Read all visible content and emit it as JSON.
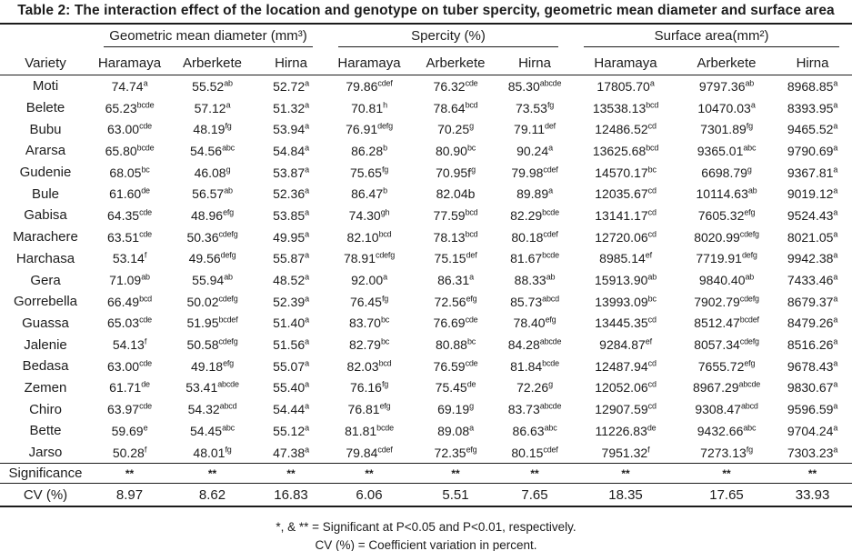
{
  "title": "Table 2: The interaction effect of the location and genotype on tuber spercity, geometric mean diameter and surface area",
  "table": {
    "variety_header": "Variety",
    "groups": [
      {
        "label": "Geometric mean diameter (mm³)"
      },
      {
        "label": "Spercity (%)"
      },
      {
        "label": "Surface area(mm²)"
      }
    ],
    "locations": [
      "Haramaya",
      "Arberkete",
      "Hirna",
      "Haramaya",
      "Arberkete",
      "Hirna",
      "Haramaya",
      "Arberkete",
      "Hirna"
    ],
    "rows": [
      {
        "variety": "Moti",
        "cells": [
          {
            "v": "74.74",
            "s": "a"
          },
          {
            "v": "55.52",
            "s": "ab"
          },
          {
            "v": "52.72",
            "s": "a"
          },
          {
            "v": "79.86",
            "s": "cdef"
          },
          {
            "v": "76.32",
            "s": "cde"
          },
          {
            "v": "85.30",
            "s": "abcde"
          },
          {
            "v": "17805.70",
            "s": "a"
          },
          {
            "v": "9797.36",
            "s": "ab"
          },
          {
            "v": "8968.85",
            "s": "a"
          }
        ]
      },
      {
        "variety": "Belete",
        "cells": [
          {
            "v": "65.23",
            "s": "bcde"
          },
          {
            "v": "57.12",
            "s": "a"
          },
          {
            "v": "51.32",
            "s": "a"
          },
          {
            "v": "70.81",
            "s": "h"
          },
          {
            "v": "78.64",
            "s": "bcd"
          },
          {
            "v": "73.53",
            "s": "fg"
          },
          {
            "v": "13538.13",
            "s": "bcd"
          },
          {
            "v": "10470.03",
            "s": "a"
          },
          {
            "v": "8393.95",
            "s": "a"
          }
        ]
      },
      {
        "variety": "Bubu",
        "cells": [
          {
            "v": "63.00",
            "s": "cde"
          },
          {
            "v": "48.19",
            "s": "fg"
          },
          {
            "v": "53.94",
            "s": "a"
          },
          {
            "v": "76.91",
            "s": "defg"
          },
          {
            "v": "70.25",
            "s": "g"
          },
          {
            "v": "79.11",
            "s": "def"
          },
          {
            "v": "12486.52",
            "s": "cd"
          },
          {
            "v": "7301.89",
            "s": "fg"
          },
          {
            "v": "9465.52",
            "s": "a"
          }
        ]
      },
      {
        "variety": "Ararsa",
        "cells": [
          {
            "v": "65.80",
            "s": "bcde"
          },
          {
            "v": "54.56",
            "s": "abc"
          },
          {
            "v": "54.84",
            "s": "a"
          },
          {
            "v": "86.28",
            "s": "b"
          },
          {
            "v": "80.90",
            "s": "bc"
          },
          {
            "v": "90.24",
            "s": "a"
          },
          {
            "v": "13625.68",
            "s": "bcd"
          },
          {
            "v": "9365.01",
            "s": "abc"
          },
          {
            "v": "9790.69",
            "s": "a"
          }
        ]
      },
      {
        "variety": "Gudenie",
        "cells": [
          {
            "v": "68.05",
            "s": "bc"
          },
          {
            "v": "46.08",
            "s": "g"
          },
          {
            "v": "53.87",
            "s": "a"
          },
          {
            "v": "75.65",
            "s": "fg"
          },
          {
            "v": "70.95f",
            "s": "g"
          },
          {
            "v": "79.98",
            "s": "cdef"
          },
          {
            "v": "14570.17",
            "s": "bc"
          },
          {
            "v": "6698.79",
            "s": "g"
          },
          {
            "v": "9367.81",
            "s": "a"
          }
        ]
      },
      {
        "variety": "Bule",
        "cells": [
          {
            "v": "61.60",
            "s": "de"
          },
          {
            "v": "56.57",
            "s": "ab"
          },
          {
            "v": "52.36",
            "s": "a"
          },
          {
            "v": "86.47",
            "s": "b"
          },
          {
            "v": "82.04b",
            "s": ""
          },
          {
            "v": "89.89",
            "s": "a"
          },
          {
            "v": "12035.67",
            "s": "cd"
          },
          {
            "v": "10114.63",
            "s": "ab"
          },
          {
            "v": "9019.12",
            "s": "a"
          }
        ]
      },
      {
        "variety": "Gabisa",
        "cells": [
          {
            "v": "64.35",
            "s": "cde"
          },
          {
            "v": "48.96",
            "s": "efg"
          },
          {
            "v": "53.85",
            "s": "a"
          },
          {
            "v": "74.30",
            "s": "gh"
          },
          {
            "v": "77.59",
            "s": "bcd"
          },
          {
            "v": "82.29",
            "s": "bcde"
          },
          {
            "v": "13141.17",
            "s": "cd"
          },
          {
            "v": "7605.32",
            "s": "efg"
          },
          {
            "v": "9524.43",
            "s": "a"
          }
        ]
      },
      {
        "variety": "Marachere",
        "cells": [
          {
            "v": "63.51",
            "s": "cde"
          },
          {
            "v": "50.36",
            "s": "cdefg"
          },
          {
            "v": "49.95",
            "s": "a"
          },
          {
            "v": "82.10",
            "s": "bcd"
          },
          {
            "v": "78.13",
            "s": "bcd"
          },
          {
            "v": "80.18",
            "s": "cdef"
          },
          {
            "v": "12720.06",
            "s": "cd"
          },
          {
            "v": "8020.99",
            "s": "cdefg"
          },
          {
            "v": "8021.05",
            "s": "a"
          }
        ]
      },
      {
        "variety": "Harchasa",
        "cells": [
          {
            "v": "53.14",
            "s": "f"
          },
          {
            "v": "49.56",
            "s": "defg"
          },
          {
            "v": "55.87",
            "s": "a"
          },
          {
            "v": "78.91",
            "s": "cdefg"
          },
          {
            "v": "75.15",
            "s": "def"
          },
          {
            "v": "81.67",
            "s": "bcde"
          },
          {
            "v": "8985.14",
            "s": "ef"
          },
          {
            "v": "7719.91",
            "s": "defg"
          },
          {
            "v": "9942.38",
            "s": "a"
          }
        ]
      },
      {
        "variety": "Gera",
        "cells": [
          {
            "v": "71.09",
            "s": "ab"
          },
          {
            "v": "55.94",
            "s": "ab"
          },
          {
            "v": "48.52",
            "s": "a"
          },
          {
            "v": "92.00",
            "s": "a"
          },
          {
            "v": "86.31",
            "s": "a"
          },
          {
            "v": "88.33",
            "s": "ab"
          },
          {
            "v": "15913.90",
            "s": "ab"
          },
          {
            "v": "9840.40",
            "s": "ab"
          },
          {
            "v": "7433.46",
            "s": "a"
          }
        ]
      },
      {
        "variety": "Gorrebella",
        "cells": [
          {
            "v": "66.49",
            "s": "bcd"
          },
          {
            "v": "50.02",
            "s": "cdefg"
          },
          {
            "v": "52.39",
            "s": "a"
          },
          {
            "v": "76.45",
            "s": "fg"
          },
          {
            "v": "72.56",
            "s": "efg"
          },
          {
            "v": "85.73",
            "s": "abcd"
          },
          {
            "v": "13993.09",
            "s": "bc"
          },
          {
            "v": "7902.79",
            "s": "cdefg"
          },
          {
            "v": "8679.37",
            "s": "a"
          }
        ]
      },
      {
        "variety": "Guassa",
        "cells": [
          {
            "v": "65.03",
            "s": "cde"
          },
          {
            "v": "51.95",
            "s": "bcdef"
          },
          {
            "v": "51.40",
            "s": "a"
          },
          {
            "v": "83.70",
            "s": "bc"
          },
          {
            "v": "76.69",
            "s": "cde"
          },
          {
            "v": "78.40",
            "s": "efg"
          },
          {
            "v": "13445.35",
            "s": "cd"
          },
          {
            "v": "8512.47",
            "s": "bcdef"
          },
          {
            "v": "8479.26",
            "s": "a"
          }
        ]
      },
      {
        "variety": "Jalenie",
        "cells": [
          {
            "v": "54.13",
            "s": "f"
          },
          {
            "v": "50.58",
            "s": "cdefg"
          },
          {
            "v": "51.56",
            "s": "a"
          },
          {
            "v": "82.79",
            "s": "bc"
          },
          {
            "v": "80.88",
            "s": "bc"
          },
          {
            "v": "84.28",
            "s": "abcde"
          },
          {
            "v": "9284.87",
            "s": "ef"
          },
          {
            "v": "8057.34",
            "s": "cdefg"
          },
          {
            "v": "8516.26",
            "s": "a"
          }
        ]
      },
      {
        "variety": "Bedasa",
        "cells": [
          {
            "v": "63.00",
            "s": "cde"
          },
          {
            "v": "49.18",
            "s": "efg"
          },
          {
            "v": "55.07",
            "s": "a"
          },
          {
            "v": "82.03",
            "s": "bcd"
          },
          {
            "v": "76.59",
            "s": "cde"
          },
          {
            "v": "81.84",
            "s": "bcde"
          },
          {
            "v": "12487.94",
            "s": "cd"
          },
          {
            "v": "7655.72",
            "s": "efg"
          },
          {
            "v": "9678.43",
            "s": "a"
          }
        ]
      },
      {
        "variety": "Zemen",
        "cells": [
          {
            "v": "61.71",
            "s": "de"
          },
          {
            "v": "53.41",
            "s": "abcde"
          },
          {
            "v": "55.40",
            "s": "a"
          },
          {
            "v": "76.16",
            "s": "fg"
          },
          {
            "v": "75.45",
            "s": "de"
          },
          {
            "v": "72.26",
            "s": "g"
          },
          {
            "v": "12052.06",
            "s": "cd"
          },
          {
            "v": "8967.29",
            "s": "abcde"
          },
          {
            "v": "9830.67",
            "s": "a"
          }
        ]
      },
      {
        "variety": "Chiro",
        "cells": [
          {
            "v": "63.97",
            "s": "cde"
          },
          {
            "v": "54.32",
            "s": "abcd"
          },
          {
            "v": "54.44",
            "s": "a"
          },
          {
            "v": "76.81",
            "s": "efg"
          },
          {
            "v": "69.19",
            "s": "g"
          },
          {
            "v": "83.73",
            "s": "abcde"
          },
          {
            "v": "12907.59",
            "s": "cd"
          },
          {
            "v": "9308.47",
            "s": "abcd"
          },
          {
            "v": "9596.59",
            "s": "a"
          }
        ]
      },
      {
        "variety": "Bette",
        "cells": [
          {
            "v": "59.69",
            "s": "e"
          },
          {
            "v": "54.45",
            "s": "abc"
          },
          {
            "v": "55.12",
            "s": "a"
          },
          {
            "v": "81.81",
            "s": "bcde"
          },
          {
            "v": "89.08",
            "s": "a"
          },
          {
            "v": "86.63",
            "s": "abc"
          },
          {
            "v": "11226.83",
            "s": "de"
          },
          {
            "v": "9432.66",
            "s": "abc"
          },
          {
            "v": "9704.24",
            "s": "a"
          }
        ]
      },
      {
        "variety": "Jarso",
        "cells": [
          {
            "v": "50.28",
            "s": "f"
          },
          {
            "v": "48.01",
            "s": "fg"
          },
          {
            "v": "47.38",
            "s": "a"
          },
          {
            "v": "79.84",
            "s": "cdef"
          },
          {
            "v": "72.35",
            "s": "efg"
          },
          {
            "v": "80.15",
            "s": "cdef"
          },
          {
            "v": "7951.32",
            "s": "f"
          },
          {
            "v": "7273.13",
            "s": "fg"
          },
          {
            "v": "7303.23",
            "s": "a"
          }
        ]
      }
    ],
    "significance": {
      "label": "Significance",
      "values": [
        "**",
        "**",
        "**",
        "**",
        "**",
        "**",
        "**",
        "**",
        "**"
      ]
    },
    "cv": {
      "label": "CV (%)",
      "values": [
        "8.97",
        "8.62",
        "16.83",
        "6.06",
        "5.51",
        "7.65",
        "18.35",
        "17.65",
        "33.93"
      ]
    }
  },
  "footnotes": [
    "*, & ** = Significant at P<0.05 and P<0.01, respectively.",
    "CV (%) = Coefficient variation in percent."
  ]
}
